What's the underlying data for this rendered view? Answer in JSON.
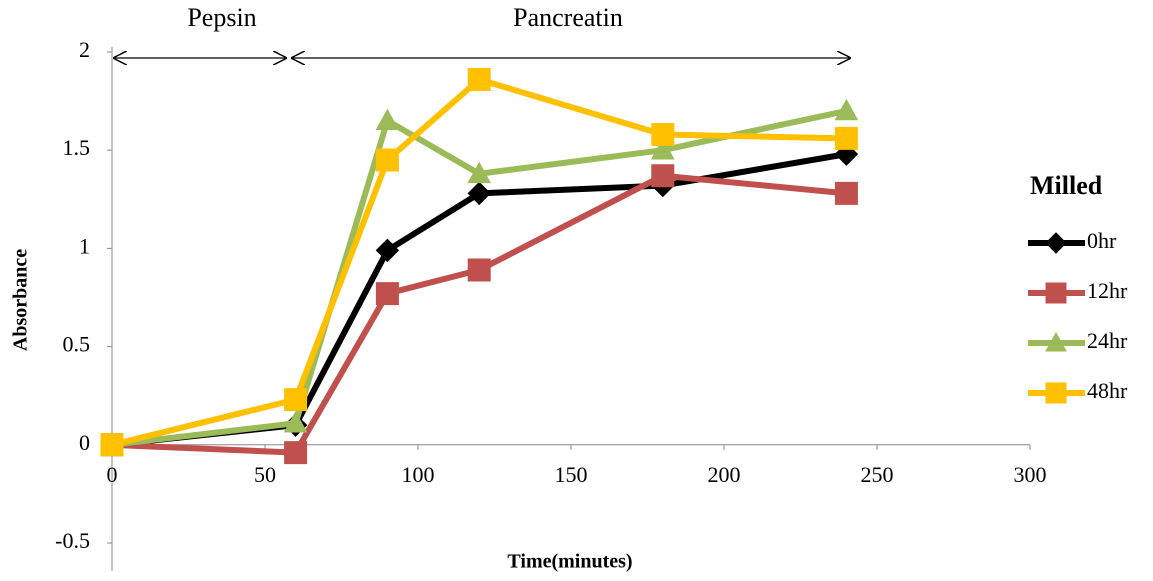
{
  "chart_data": {
    "type": "line",
    "xlabel": "Time(minutes)",
    "ylabel": "Absorbance",
    "annotations": [
      "Pepsin",
      "Pancreatin"
    ],
    "legend_title": "Milled",
    "legend_position": "right",
    "x": [
      0,
      60,
      90,
      120,
      180,
      240
    ],
    "series": [
      {
        "name": "0hr",
        "color": "#000000",
        "marker": "diamond",
        "values": [
          0,
          0.1,
          0.99,
          1.28,
          1.32,
          1.48
        ]
      },
      {
        "name": "12hr",
        "color": "#c0504d",
        "marker": "square",
        "values": [
          0,
          -0.04,
          0.77,
          0.89,
          1.37,
          1.28
        ]
      },
      {
        "name": "24hr",
        "color": "#9bbb59",
        "marker": "triangle",
        "values": [
          0,
          0.11,
          1.65,
          1.38,
          1.5,
          1.7
        ]
      },
      {
        "name": "48hr",
        "color": "#ffc000",
        "marker": "square",
        "values": [
          0,
          0.23,
          1.45,
          1.86,
          1.58,
          1.56
        ]
      }
    ],
    "xlim": [
      0,
      300
    ],
    "xticks": [
      0,
      50,
      100,
      150,
      200,
      250,
      300
    ],
    "ylim": [
      -0.5,
      2
    ],
    "yticks": [
      -0.5,
      0,
      0.5,
      1,
      1.5,
      2
    ]
  }
}
